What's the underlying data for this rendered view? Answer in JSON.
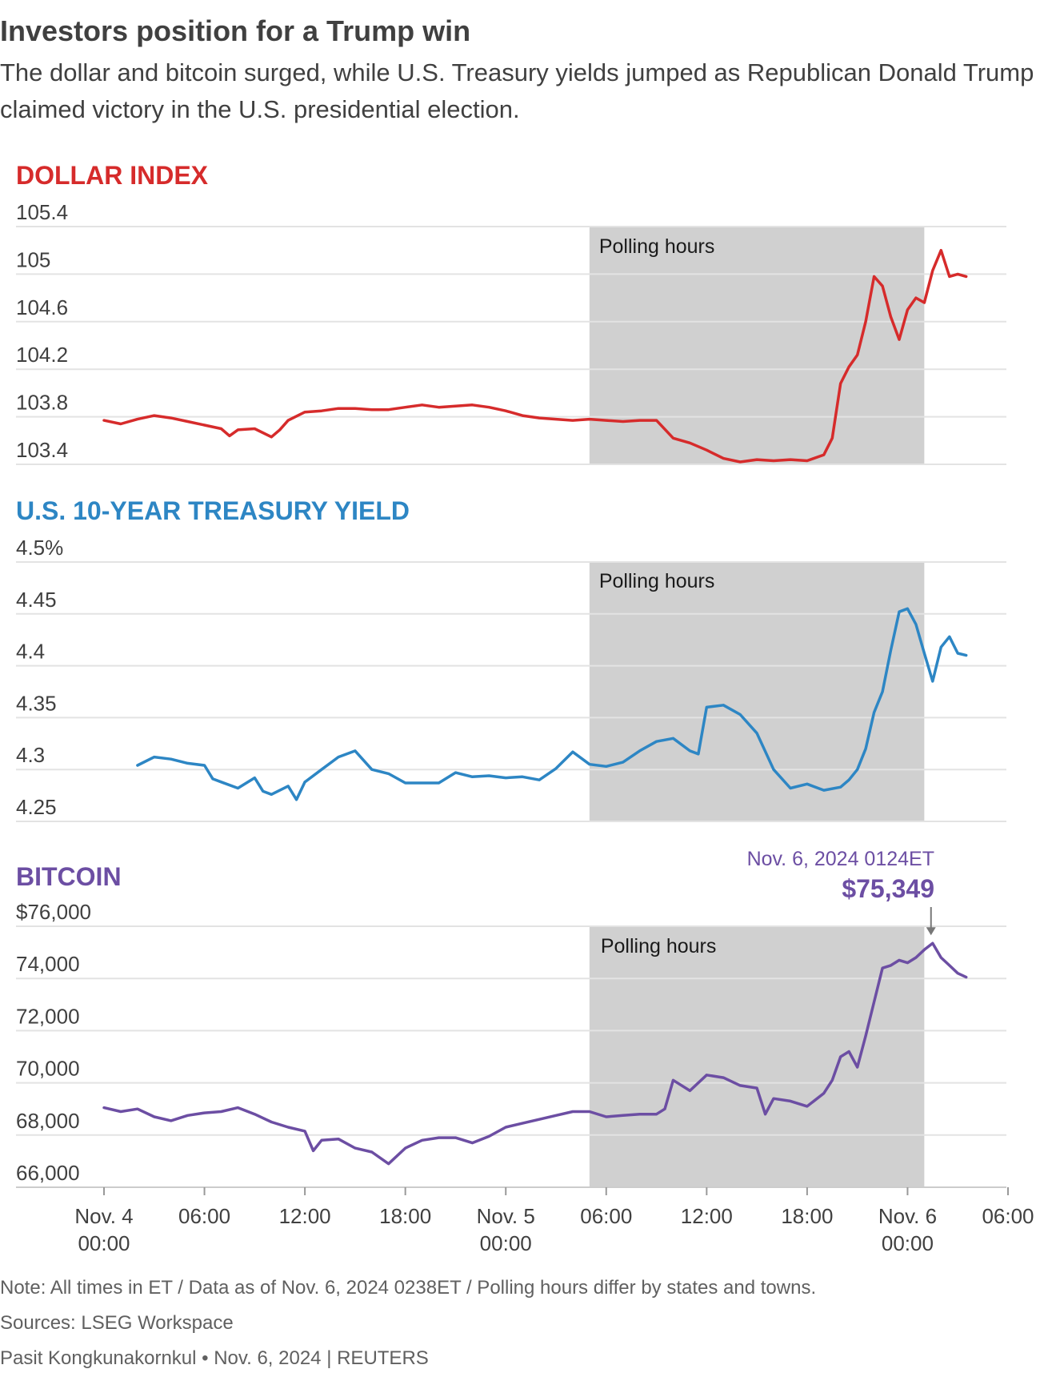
{
  "title": "Investors position for a Trump win",
  "subtitle": "The dollar and bitcoin surged, while U.S. Treasury yields jumped as Republican Donald Trump claimed victory in the U.S. presidential election.",
  "footer": {
    "note": "Note: All times in ET / Data as of Nov. 6, 2024 0238ET / Polling hours differ by states and towns.",
    "sources": "Sources: LSEG Workspace",
    "credit": "Pasit Kongkunakornkul • Nov. 6, 2024 | REUTERS"
  },
  "shading_label": "Polling hours",
  "shading_color": "#d0d0d0",
  "x_axis": {
    "unit": "hours since Nov. 4 00:00 ET",
    "ticks": [
      {
        "value": 0,
        "line1": "Nov. 4",
        "line2": "00:00"
      },
      {
        "value": 6,
        "line1": "06:00",
        "line2": ""
      },
      {
        "value": 12,
        "line1": "12:00",
        "line2": ""
      },
      {
        "value": 18,
        "line1": "18:00",
        "line2": ""
      },
      {
        "value": 24,
        "line1": "Nov. 5",
        "line2": "00:00"
      },
      {
        "value": 30,
        "line1": "06:00",
        "line2": ""
      },
      {
        "value": 36,
        "line1": "12:00",
        "line2": ""
      },
      {
        "value": 42,
        "line1": "18:00",
        "line2": ""
      },
      {
        "value": 48,
        "line1": "Nov. 6",
        "line2": "00:00"
      },
      {
        "value": 54,
        "line1": "06:00",
        "line2": ""
      }
    ],
    "range": [
      0,
      54
    ]
  },
  "chart_data": [
    {
      "type": "line",
      "title": "DOLLAR INDEX",
      "color": "#d62b2b",
      "ylim": [
        103.4,
        105.4
      ],
      "yticks": [
        103.4,
        103.8,
        104.2,
        104.6,
        105,
        105.4
      ],
      "ytick_labels": [
        "103.4",
        "103.8",
        "104.2",
        "104.6",
        "105",
        "105.4"
      ],
      "polling_hours": [
        29,
        49
      ],
      "x": [
        0,
        1,
        2,
        3,
        4,
        5,
        6,
        7,
        7.5,
        8,
        9,
        10,
        10.5,
        11,
        12,
        13,
        14,
        15,
        16,
        17,
        18,
        19,
        20,
        21,
        22,
        23,
        24,
        25,
        26,
        27,
        28,
        29,
        30,
        31,
        32,
        33,
        34,
        35,
        36,
        37,
        38,
        39,
        40,
        41,
        42,
        43,
        43.5,
        44,
        44.5,
        45,
        45.5,
        46,
        46.5,
        47,
        47.5,
        48,
        48.5,
        49,
        49.5,
        50,
        50.5,
        51,
        51.5
      ],
      "y": [
        103.77,
        103.74,
        103.78,
        103.81,
        103.79,
        103.76,
        103.73,
        103.7,
        103.64,
        103.69,
        103.7,
        103.63,
        103.69,
        103.77,
        103.84,
        103.85,
        103.87,
        103.87,
        103.86,
        103.86,
        103.88,
        103.9,
        103.88,
        103.89,
        103.9,
        103.88,
        103.85,
        103.81,
        103.79,
        103.78,
        103.77,
        103.78,
        103.77,
        103.76,
        103.77,
        103.77,
        103.62,
        103.58,
        103.52,
        103.45,
        103.42,
        103.44,
        103.43,
        103.44,
        103.43,
        103.48,
        103.62,
        104.08,
        104.22,
        104.32,
        104.6,
        104.98,
        104.9,
        104.64,
        104.45,
        104.7,
        104.8,
        104.76,
        105.03,
        105.2,
        104.98,
        105.0,
        104.98
      ]
    },
    {
      "type": "line",
      "title": "U.S. 10-YEAR TREASURY YIELD",
      "color": "#2d86c4",
      "ylim": [
        4.25,
        4.5
      ],
      "yticks": [
        4.25,
        4.3,
        4.35,
        4.4,
        4.45,
        4.5
      ],
      "ytick_labels": [
        "4.25",
        "4.3",
        "4.35",
        "4.4",
        "4.45",
        "4.5%"
      ],
      "polling_hours": [
        29,
        49
      ],
      "x": [
        2,
        3,
        4,
        5,
        6,
        6.5,
        7,
        8,
        9,
        9.5,
        10,
        11,
        11.5,
        12,
        13,
        14,
        15,
        16,
        17,
        18,
        19,
        20,
        21,
        22,
        23,
        24,
        25,
        26,
        27,
        28,
        29,
        30,
        31,
        32,
        33,
        34,
        35,
        35.5,
        36,
        37,
        38,
        39,
        40,
        41,
        42,
        43,
        44,
        44.5,
        45,
        45.5,
        46,
        46.5,
        47,
        47.5,
        48,
        48.5,
        49,
        49.5,
        50,
        50.5,
        51,
        51.5
      ],
      "y": [
        4.304,
        4.312,
        4.31,
        4.306,
        4.304,
        4.291,
        4.288,
        4.282,
        4.292,
        4.279,
        4.276,
        4.284,
        4.271,
        4.288,
        4.3,
        4.312,
        4.318,
        4.3,
        4.296,
        4.287,
        4.287,
        4.287,
        4.297,
        4.293,
        4.294,
        4.292,
        4.293,
        4.29,
        4.301,
        4.317,
        4.305,
        4.303,
        4.307,
        4.318,
        4.327,
        4.33,
        4.318,
        4.315,
        4.36,
        4.362,
        4.353,
        4.335,
        4.3,
        4.282,
        4.286,
        4.28,
        4.283,
        4.29,
        4.3,
        4.32,
        4.355,
        4.375,
        4.415,
        4.452,
        4.455,
        4.44,
        4.412,
        4.385,
        4.418,
        4.428,
        4.412,
        4.41
      ]
    },
    {
      "type": "line",
      "title": "BITCOIN",
      "color": "#6c4ea3",
      "ylim": [
        66000,
        76000
      ],
      "yticks": [
        66000,
        68000,
        70000,
        72000,
        74000,
        76000
      ],
      "ytick_labels": [
        "66,000",
        "68,000",
        "70,000",
        "72,000",
        "74,000",
        "$76,000"
      ],
      "polling_hours": [
        29,
        49
      ],
      "x": [
        0,
        1,
        2,
        3,
        4,
        5,
        6,
        7,
        8,
        9,
        10,
        11,
        12,
        12.5,
        13,
        14,
        15,
        16,
        17,
        18,
        19,
        20,
        21,
        22,
        23,
        24,
        25,
        26,
        27,
        28,
        29,
        30,
        31,
        32,
        33,
        33.5,
        34,
        35,
        36,
        37,
        38,
        39,
        39.5,
        40,
        41,
        42,
        43,
        43.5,
        44,
        44.5,
        45,
        45.5,
        46,
        46.5,
        47,
        47.5,
        48,
        48.5,
        49,
        49.5,
        50,
        50.5,
        51,
        51.5
      ],
      "y": [
        69050,
        68900,
        69000,
        68700,
        68550,
        68750,
        68850,
        68900,
        69050,
        68800,
        68500,
        68300,
        68150,
        67400,
        67800,
        67850,
        67500,
        67350,
        66900,
        67500,
        67800,
        67900,
        67900,
        67700,
        67950,
        68300,
        68450,
        68600,
        68750,
        68900,
        68900,
        68700,
        68750,
        68800,
        68800,
        69000,
        70100,
        69700,
        70300,
        70200,
        69900,
        69800,
        68800,
        69400,
        69300,
        69100,
        69600,
        70100,
        71000,
        71200,
        70600,
        71800,
        73100,
        74400,
        74500,
        74700,
        74600,
        74800,
        75100,
        75349,
        74800,
        74500,
        74200,
        74050
      ]
    }
  ],
  "annotation": {
    "date_label": "Nov. 6, 2024 0124ET",
    "value_label": "$75,349",
    "x": 49.4,
    "y": 75349
  }
}
